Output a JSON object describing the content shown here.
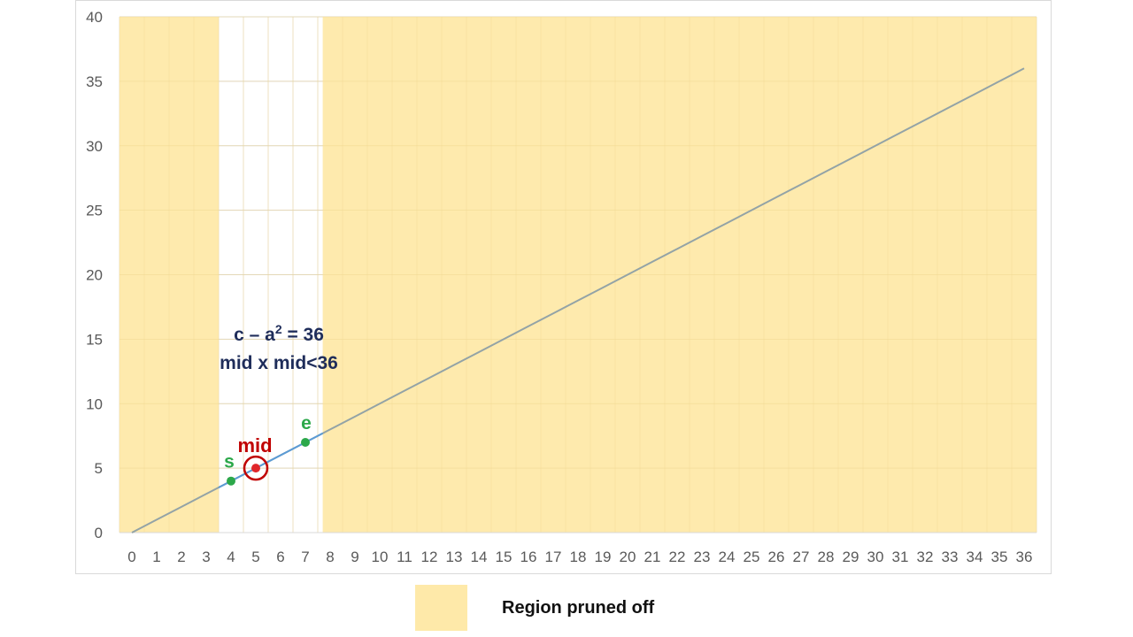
{
  "chart_data": {
    "type": "line",
    "x": [
      0,
      1,
      2,
      3,
      4,
      5,
      6,
      7,
      8,
      9,
      10,
      11,
      12,
      13,
      14,
      15,
      16,
      17,
      18,
      19,
      20,
      21,
      22,
      23,
      24,
      25,
      26,
      27,
      28,
      29,
      30,
      31,
      32,
      33,
      34,
      35,
      36
    ],
    "series": [
      {
        "values": [
          0,
          1,
          2,
          3,
          4,
          5,
          6,
          7,
          8,
          9,
          10,
          11,
          12,
          13,
          14,
          15,
          16,
          17,
          18,
          19,
          20,
          21,
          22,
          23,
          24,
          25,
          26,
          27,
          28,
          29,
          30,
          31,
          32,
          33,
          34,
          35,
          36
        ],
        "color": "#93a3a6",
        "highlight_color": "#5b9bd5"
      }
    ],
    "xlim": [
      -0.5,
      36.5
    ],
    "ylim": [
      0,
      40
    ],
    "y_ticks": [
      0,
      5,
      10,
      15,
      20,
      25,
      30,
      35,
      40
    ],
    "grid": true,
    "pruned_regions": [
      [
        -0.5,
        3.5
      ],
      [
        7.7,
        36.5
      ]
    ],
    "pruned_color": "#fee9a9",
    "points": [
      {
        "label": "s",
        "x": 4,
        "y": 4,
        "color": "#2ca84a"
      },
      {
        "label": "mid",
        "x": 5,
        "y": 5,
        "color": "#e0262a",
        "circled": true,
        "label_color": "#c00000"
      },
      {
        "label": "e",
        "x": 7,
        "y": 7,
        "color": "#2ca84a"
      }
    ],
    "annotation": {
      "line1": "c – a",
      "line1_sup": "2",
      "line1_tail": " = 36",
      "line2": "mid x mid<36"
    },
    "legend": {
      "label": "Region pruned off",
      "position": "bottom"
    }
  }
}
